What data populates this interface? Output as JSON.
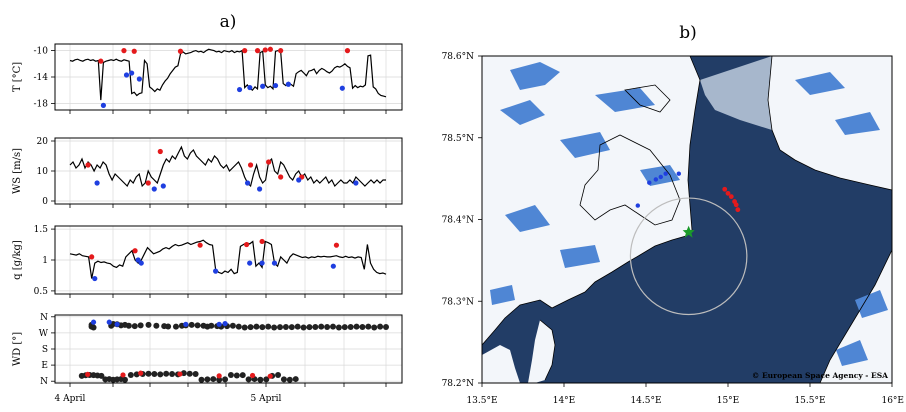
{
  "panels": {
    "a": {
      "label": "a)"
    },
    "b": {
      "label": "b)",
      "credit": "© European Space Agency - ESA"
    }
  },
  "chart_data": [
    {
      "type": "line",
      "title": "",
      "ylabel": "T [°C]",
      "yticks": [
        -10,
        -14,
        -18
      ],
      "ylim": [
        -19,
        -9
      ],
      "series": [
        {
          "values": [
            -11.5,
            -11.6,
            -11.4,
            -11.3,
            -11.5,
            -11.6,
            -11.4,
            -11.3,
            -11.5,
            -11.4,
            -11.6,
            -11.5,
            -17.5,
            -11.8,
            -11.6,
            -11.5,
            -11.4,
            -11.5,
            -11.3,
            -11.5,
            -11.6,
            -11.4,
            -11.5,
            -11.6,
            -16.5,
            -16.3,
            -16.8,
            -16.5,
            -16.4,
            -11.5,
            -12.0,
            -15.5,
            -15.8,
            -16.2,
            -15.8,
            -16.0,
            -15.2,
            -14.6,
            -14.2,
            -13.5,
            -13.0,
            -12.5,
            -12.3,
            -10.5,
            -10.2,
            -10.5,
            -10.4,
            -10.3,
            -10.1,
            -10.0,
            -10.2,
            -10.1,
            -10.3,
            -10.0,
            -9.8,
            -9.9,
            -10.0,
            -10.2,
            -10.1,
            -10.3,
            -10.0,
            -10.1,
            -10.2,
            -10.0,
            -10.3,
            -10.1,
            -10.2,
            -10.0,
            -15.6,
            -15.2,
            -15.7,
            -16.0,
            -15.5,
            -15.8,
            -10.3,
            -10.1,
            -15.2,
            -15.6,
            -15.4,
            -15.8,
            -10.1,
            -10.0,
            -10.2,
            -15.0,
            -15.3,
            -14.8,
            -15.1,
            -15.4,
            -13.5,
            -13.2,
            -13.0,
            -13.4,
            -13.8,
            -13.1,
            -13.0,
            -12.8,
            -13.5,
            -13.0,
            -12.7,
            -12.9,
            -13.2,
            -13.4,
            -13.1,
            -12.6,
            -12.4,
            -12.5,
            -12.3,
            -12.0,
            -12.4,
            -12.6,
            -15.7,
            -15.3,
            -15.6,
            -15.4,
            -15.5,
            -15.2,
            -10.8,
            -10.7,
            -15.5,
            -15.8,
            -16.5,
            -16.8,
            -16.9,
            -17.0
          ]
        }
      ],
      "markers_red": [
        [
          12,
          -11.6
        ],
        [
          21,
          -10.0
        ],
        [
          25,
          -10.1
        ],
        [
          43,
          -10.1
        ],
        [
          68,
          -10.0
        ],
        [
          73,
          -10.0
        ],
        [
          76,
          -9.9
        ],
        [
          78,
          -9.8
        ],
        [
          82,
          -10.0
        ],
        [
          108,
          -10.0
        ]
      ],
      "markers_blue": [
        [
          13,
          -18.3
        ],
        [
          22,
          -13.7
        ],
        [
          24,
          -13.4
        ],
        [
          27,
          -14.3
        ],
        [
          66,
          -15.9
        ],
        [
          70,
          -15.6
        ],
        [
          75,
          -15.4
        ],
        [
          80,
          -15.3
        ],
        [
          85,
          -15.1
        ],
        [
          106,
          -15.7
        ]
      ]
    },
    {
      "type": "line",
      "ylabel": "WS [m/s]",
      "yticks": [
        20,
        10,
        0
      ],
      "ylim": [
        -1,
        21
      ],
      "series": [
        {
          "values": [
            12,
            13,
            11,
            12,
            14,
            11,
            13,
            12,
            10,
            12,
            11,
            13,
            12,
            9,
            7,
            9,
            8,
            7,
            6,
            5,
            7,
            6,
            8,
            9,
            5,
            6,
            10,
            8,
            7,
            6,
            9,
            12,
            14,
            13,
            15,
            14,
            16,
            18,
            15,
            14,
            16,
            17,
            15,
            14,
            13,
            12,
            14,
            13,
            15,
            14,
            12,
            11,
            12,
            10,
            11,
            12,
            13,
            11,
            8,
            6,
            5,
            9,
            12,
            8,
            6,
            7,
            13,
            14,
            10,
            9,
            13,
            12,
            10,
            8,
            7,
            9,
            10,
            8,
            9,
            7,
            8,
            6,
            7,
            6,
            7,
            8,
            6,
            7,
            5,
            6,
            7,
            6,
            6,
            7,
            6,
            8,
            7,
            6,
            5,
            6,
            7,
            6,
            7,
            6,
            7,
            7
          ]
        }
      ],
      "markers_red": [
        [
          6,
          12
        ],
        [
          26,
          6
        ],
        [
          30,
          16.5
        ],
        [
          60,
          12
        ],
        [
          66,
          13
        ],
        [
          70,
          8
        ],
        [
          77,
          8
        ]
      ],
      "markers_blue": [
        [
          9,
          6
        ],
        [
          28,
          4
        ],
        [
          31,
          5
        ],
        [
          59,
          6
        ],
        [
          63,
          4
        ],
        [
          76,
          7
        ],
        [
          95,
          6
        ]
      ]
    },
    {
      "type": "line",
      "ylabel": "q [g/kg]",
      "yticks": [
        1.5,
        1.0,
        0.5
      ],
      "ylim": [
        0.45,
        1.55
      ],
      "series": [
        {
          "values": [
            1.1,
            1.09,
            1.08,
            1.1,
            1.07,
            1.06,
            1.05,
            0.7,
            0.95,
            0.98,
            0.96,
            0.97,
            0.95,
            0.94,
            0.9,
            0.88,
            0.92,
            0.9,
            1.05,
            1.1,
            1.15,
            1.0,
            0.95,
            1.0,
            1.1,
            1.2,
            1.15,
            1.1,
            1.12,
            1.14,
            1.18,
            1.2,
            1.18,
            1.22,
            1.25,
            1.23,
            1.24,
            1.26,
            1.28,
            1.25,
            1.27,
            1.29,
            1.3,
            1.32,
            1.28,
            1.25,
            1.24,
            0.85,
            0.8,
            0.78,
            0.82,
            0.8,
            0.85,
            0.78,
            0.8,
            1.22,
            1.25,
            1.28,
            1.26,
            1.3,
            0.9,
            0.95,
            0.88,
            1.3,
            1.28,
            1.25,
            0.95,
            0.9,
            1.05,
            1.0,
            0.95,
            1.05,
            1.1,
            1.08,
            1.06,
            1.04,
            1.05,
            1.03,
            1.05,
            1.04,
            1.06,
            1.05,
            1.06,
            1.05,
            1.05,
            1.06,
            1.07,
            1.05,
            1.04,
            1.06,
            1.04,
            1.05,
            1.03,
            1.05,
            1.04,
            0.85,
            1.25,
            0.95,
            0.85,
            0.8,
            0.78,
            0.79,
            0.77
          ]
        }
      ],
      "markers_red": [
        [
          7,
          1.05
        ],
        [
          21,
          1.15
        ],
        [
          42,
          1.24
        ],
        [
          57,
          1.25
        ],
        [
          62,
          1.3
        ],
        [
          86,
          1.24
        ]
      ],
      "markers_blue": [
        [
          8,
          0.7
        ],
        [
          22,
          1.0
        ],
        [
          23,
          0.95
        ],
        [
          47,
          0.82
        ],
        [
          58,
          0.95
        ],
        [
          62,
          0.95
        ],
        [
          66,
          0.95
        ],
        [
          85,
          0.9
        ]
      ]
    },
    {
      "type": "scatter",
      "ylabel": "WD [°]",
      "ytick_labels": [
        "N",
        "W",
        "S",
        "E",
        "N"
      ],
      "ytick_values": [
        360,
        270,
        180,
        90,
        0
      ],
      "ylim": [
        -10,
        370
      ],
      "x_tick_labels": [
        "4 April",
        "5 April"
      ],
      "series": [
        {
          "name": "upper",
          "values": [
            [
              11,
              305
            ],
            [
              11,
              315
            ],
            [
              12,
              300
            ],
            [
              21,
              310
            ],
            [
              22,
              320
            ],
            [
              24,
              318
            ],
            [
              26,
              312
            ],
            [
              28,
              315
            ],
            [
              30,
              310
            ],
            [
              33,
              308
            ],
            [
              36,
              312
            ],
            [
              40,
              315
            ],
            [
              44,
              310
            ],
            [
              48,
              308
            ],
            [
              50,
              306
            ],
            [
              54,
              305
            ],
            [
              57,
              310
            ],
            [
              59,
              312
            ],
            [
              62,
              315
            ],
            [
              65,
              312
            ],
            [
              68,
              310
            ],
            [
              70,
              305
            ],
            [
              72,
              310
            ],
            [
              75,
              308
            ],
            [
              77,
              305
            ],
            [
              80,
              308
            ],
            [
              83,
              310
            ],
            [
              86,
              305
            ],
            [
              89,
              300
            ],
            [
              92,
              302
            ],
            [
              95,
              305
            ],
            [
              98,
              302
            ],
            [
              101,
              305
            ],
            [
              104,
              300
            ],
            [
              107,
              302
            ],
            [
              110,
              303
            ],
            [
              113,
              302
            ],
            [
              116,
              305
            ],
            [
              119,
              300
            ],
            [
              122,
              302
            ],
            [
              125,
              303
            ],
            [
              128,
              305
            ],
            [
              131,
              303
            ],
            [
              134,
              305
            ],
            [
              137,
              300
            ],
            [
              140,
              302
            ],
            [
              143,
              303
            ],
            [
              146,
              305
            ],
            [
              149,
              303
            ],
            [
              152,
              305
            ],
            [
              155,
              300
            ],
            [
              158,
              305
            ],
            [
              161,
              303
            ]
          ]
        },
        {
          "name": "lower",
          "values": [
            [
              6,
              30
            ],
            [
              8,
              33
            ],
            [
              10,
              35
            ],
            [
              12,
              34
            ],
            [
              14,
              32
            ],
            [
              16,
              30
            ],
            [
              18,
              10
            ],
            [
              20,
              12
            ],
            [
              22,
              8
            ],
            [
              24,
              10
            ],
            [
              26,
              12
            ],
            [
              28,
              8
            ],
            [
              31,
              35
            ],
            [
              34,
              38
            ],
            [
              37,
              40
            ],
            [
              40,
              42
            ],
            [
              43,
              40
            ],
            [
              46,
              38
            ],
            [
              49,
              42
            ],
            [
              52,
              40
            ],
            [
              55,
              38
            ],
            [
              58,
              45
            ],
            [
              61,
              42
            ],
            [
              64,
              40
            ],
            [
              67,
              8
            ],
            [
              70,
              10
            ],
            [
              73,
              12
            ],
            [
              76,
              8
            ],
            [
              79,
              10
            ],
            [
              82,
              35
            ],
            [
              85,
              32
            ],
            [
              88,
              34
            ],
            [
              91,
              10
            ],
            [
              94,
              12
            ],
            [
              97,
              8
            ],
            [
              100,
              10
            ],
            [
              103,
              30
            ],
            [
              106,
              35
            ],
            [
              109,
              10
            ],
            [
              112,
              8
            ],
            [
              115,
              12
            ]
          ]
        }
      ],
      "markers_red": [
        [
          9,
          38
        ],
        [
          27,
          35
        ],
        [
          36,
          45
        ],
        [
          56,
          40
        ],
        [
          76,
          30
        ],
        [
          93,
          32
        ],
        [
          102,
          28
        ]
      ],
      "markers_blue": [
        [
          12,
          330
        ],
        [
          20,
          330
        ],
        [
          24,
          318
        ],
        [
          59,
          318
        ],
        [
          76,
          318
        ],
        [
          79,
          322
        ]
      ]
    },
    {
      "type": "map",
      "xtick_labels": [
        "13.5°E",
        "14°E",
        "14.5°E",
        "15°E",
        "15.5°E",
        "16°E"
      ],
      "xtick_values": [
        13.5,
        14.0,
        14.5,
        15.0,
        15.5,
        16.0
      ],
      "ytick_labels": [
        "78.6°N",
        "78.5°N",
        "78.4°N",
        "78.3°N",
        "78.2°N"
      ],
      "ytick_values": [
        78.6,
        78.5,
        78.4,
        78.3,
        78.2
      ],
      "xlim": [
        13.5,
        16.0
      ],
      "ylim": [
        78.2,
        78.6
      ],
      "circle": {
        "center": [
          14.76,
          78.355
        ],
        "radius_deg_lon": 0.355
      },
      "station": [
        14.76,
        78.385
      ],
      "points_red": [
        [
          14.98,
          78.437
        ],
        [
          15.0,
          78.432
        ],
        [
          15.02,
          78.428
        ],
        [
          15.04,
          78.422
        ],
        [
          15.05,
          78.418
        ],
        [
          15.06,
          78.412
        ]
      ],
      "points_blue": [
        [
          14.45,
          78.417
        ],
        [
          14.52,
          78.445
        ],
        [
          14.56,
          78.449
        ],
        [
          14.59,
          78.452
        ],
        [
          14.62,
          78.456
        ],
        [
          14.7,
          78.456
        ]
      ]
    }
  ]
}
